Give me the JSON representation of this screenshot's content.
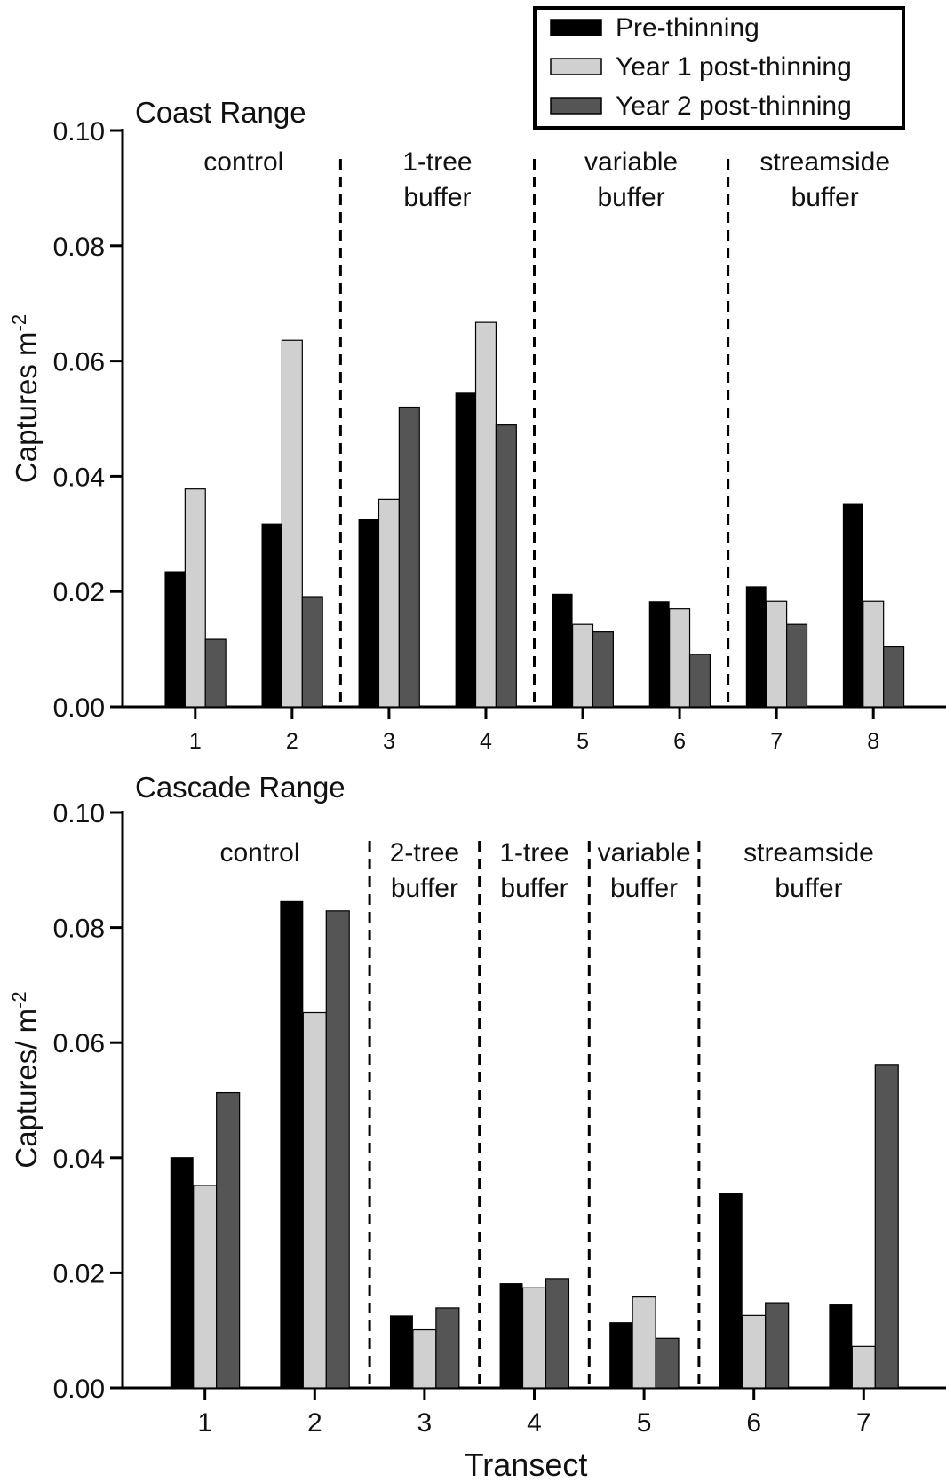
{
  "legend": {
    "items": [
      {
        "label": "Pre-thinning",
        "color": "#000000"
      },
      {
        "label": "Year 1 post-thinning",
        "color": "#d0d0d0"
      },
      {
        "label": "Year 2 post-thinning",
        "color": "#555555"
      }
    ]
  },
  "xlabel": "Transect",
  "chart_data": [
    {
      "type": "bar",
      "title": "Coast Range",
      "ylabel": "Captures m",
      "ylabel_sup": "-2",
      "ylim": [
        0,
        0.1
      ],
      "yticks": [
        "0.00",
        "0.02",
        "0.04",
        "0.06",
        "0.08",
        "0.10"
      ],
      "categories": [
        "1",
        "2",
        "3",
        "4",
        "5",
        "6",
        "7",
        "8"
      ],
      "series": [
        {
          "name": "Pre-thinning",
          "values": [
            0.0235,
            0.0318,
            0.0326,
            0.0545,
            0.0196,
            0.0183,
            0.0209,
            0.0352
          ]
        },
        {
          "name": "Year 1 post-thinning",
          "values": [
            0.0378,
            0.0636,
            0.036,
            0.0667,
            0.0143,
            0.017,
            0.0183,
            0.0183
          ]
        },
        {
          "name": "Year 2 post-thinning",
          "values": [
            0.0117,
            0.0191,
            0.052,
            0.0489,
            0.013,
            0.0091,
            0.0143,
            0.0104
          ]
        }
      ],
      "groups": [
        {
          "lines": [
            "control"
          ],
          "from": 1,
          "to": 2
        },
        {
          "lines": [
            "1-tree",
            "buffer"
          ],
          "from": 3,
          "to": 4
        },
        {
          "lines": [
            "variable",
            "buffer"
          ],
          "from": 5,
          "to": 6
        },
        {
          "lines": [
            "streamside",
            "buffer"
          ],
          "from": 7,
          "to": 8
        }
      ]
    },
    {
      "type": "bar",
      "title": "Cascade Range",
      "ylabel": "Captures/ m",
      "ylabel_sup": "-2",
      "ylim": [
        0,
        0.1
      ],
      "yticks": [
        "0.00",
        "0.02",
        "0.04",
        "0.06",
        "0.08",
        "0.10"
      ],
      "categories": [
        "1",
        "2",
        "3",
        "4",
        "5",
        "6",
        "7"
      ],
      "series": [
        {
          "name": "Pre-thinning",
          "values": [
            0.0401,
            0.0846,
            0.0126,
            0.0182,
            0.0114,
            0.0339,
            0.0145
          ]
        },
        {
          "name": "Year 1 post-thinning",
          "values": [
            0.0352,
            0.0652,
            0.0101,
            0.0174,
            0.0158,
            0.0126,
            0.0072
          ]
        },
        {
          "name": "Year 2 post-thinning",
          "values": [
            0.0513,
            0.0829,
            0.0139,
            0.019,
            0.0086,
            0.0148,
            0.0562
          ]
        }
      ],
      "groups": [
        {
          "lines": [
            "control"
          ],
          "from": 1,
          "to": 2
        },
        {
          "lines": [
            "2-tree",
            "buffer"
          ],
          "from": 3,
          "to": 3
        },
        {
          "lines": [
            "1-tree",
            "buffer"
          ],
          "from": 4,
          "to": 4
        },
        {
          "lines": [
            "variable",
            "buffer"
          ],
          "from": 5,
          "to": 5
        },
        {
          "lines": [
            "streamside",
            "buffer"
          ],
          "from": 6,
          "to": 7
        }
      ]
    }
  ]
}
